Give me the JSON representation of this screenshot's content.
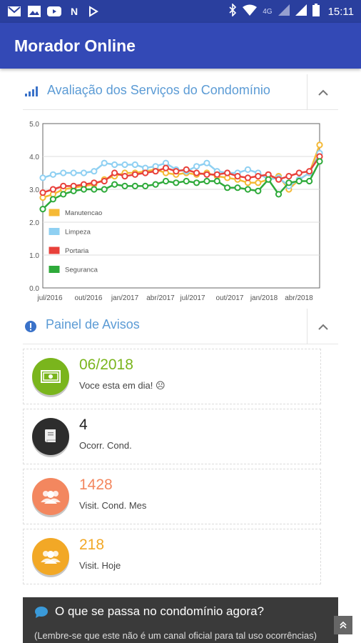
{
  "status_bar": {
    "time": "15:11",
    "network": "4G",
    "notification_icons": [
      "gmail-icon",
      "image-icon",
      "youtube-icon",
      "nfl-icon",
      "tasks-icon"
    ],
    "system_icons": [
      "bluetooth-icon",
      "wifi-icon",
      "signal-icon",
      "battery-icon"
    ]
  },
  "app_bar": {
    "title": "Morador Online"
  },
  "rating_section": {
    "title": "Avaliação dos Serviços do Condomínio"
  },
  "chart_data": {
    "type": "line",
    "x_tick_labels": [
      "jul/2016",
      "out/2016",
      "jan/2017",
      "abr/2017",
      "jul/2017",
      "out/2017",
      "jan/2018",
      "abr/2018"
    ],
    "ylim": [
      0,
      5
    ],
    "y_ticks": [
      "0.0",
      "1.0",
      "2.0",
      "3.0",
      "4.0",
      "5.0"
    ],
    "grid": true,
    "legend_placement": "bottom-left",
    "series": [
      {
        "name": "Manutencao",
        "color": "#f5b935",
        "values": [
          2.75,
          2.85,
          3.0,
          3.05,
          3.1,
          3.15,
          3.3,
          3.4,
          3.5,
          3.5,
          3.55,
          3.6,
          3.5,
          3.45,
          3.5,
          3.45,
          3.5,
          3.4,
          3.35,
          3.3,
          3.2,
          3.2,
          3.3,
          3.4,
          3.0,
          3.3,
          3.5,
          4.35
        ]
      },
      {
        "name": "Limpeza",
        "color": "#8fd0f2",
        "values": [
          3.35,
          3.45,
          3.5,
          3.5,
          3.5,
          3.55,
          3.8,
          3.75,
          3.75,
          3.75,
          3.65,
          3.7,
          3.8,
          3.6,
          3.55,
          3.7,
          3.8,
          3.55,
          3.5,
          3.5,
          3.6,
          3.5,
          3.3,
          3.35,
          3.1,
          3.3,
          3.5,
          4.1
        ]
      },
      {
        "name": "Portaria",
        "color": "#e8403a",
        "values": [
          2.9,
          3.0,
          3.1,
          3.1,
          3.15,
          3.2,
          3.25,
          3.5,
          3.4,
          3.45,
          3.5,
          3.55,
          3.65,
          3.55,
          3.6,
          3.5,
          3.45,
          3.45,
          3.5,
          3.4,
          3.35,
          3.4,
          3.45,
          3.3,
          3.4,
          3.5,
          3.55,
          4.0
        ]
      },
      {
        "name": "Seguranca",
        "color": "#2eaa3a",
        "values": [
          2.4,
          2.7,
          2.85,
          2.95,
          3.0,
          3.0,
          3.0,
          3.15,
          3.1,
          3.1,
          3.1,
          3.15,
          3.25,
          3.2,
          3.25,
          3.2,
          3.25,
          3.25,
          3.05,
          3.05,
          3.0,
          2.95,
          3.3,
          2.85,
          3.2,
          3.25,
          3.25,
          3.85
        ]
      }
    ]
  },
  "notices_section": {
    "title": "Painel de Avisos"
  },
  "cards": [
    {
      "value": "06/2018",
      "label": "Voce esta em dia! ☹",
      "color": "#7ab51d",
      "icon": "money-icon"
    },
    {
      "value": "4",
      "label": "Ocorr. Cond.",
      "color": "#2d2d2d",
      "icon": "book-icon"
    },
    {
      "value": "1428",
      "label": "Visit. Cond. Mes",
      "color": "#f3875f",
      "icon": "group-icon"
    },
    {
      "value": "218",
      "label": "Visit. Hoje",
      "color": "#f2a826",
      "icon": "group-icon"
    }
  ],
  "banner": {
    "title": "O que se passa no condomínio agora?",
    "subtitle": "(Lembre-se que este não é um canal oficial para tal uso ocorrências)"
  }
}
